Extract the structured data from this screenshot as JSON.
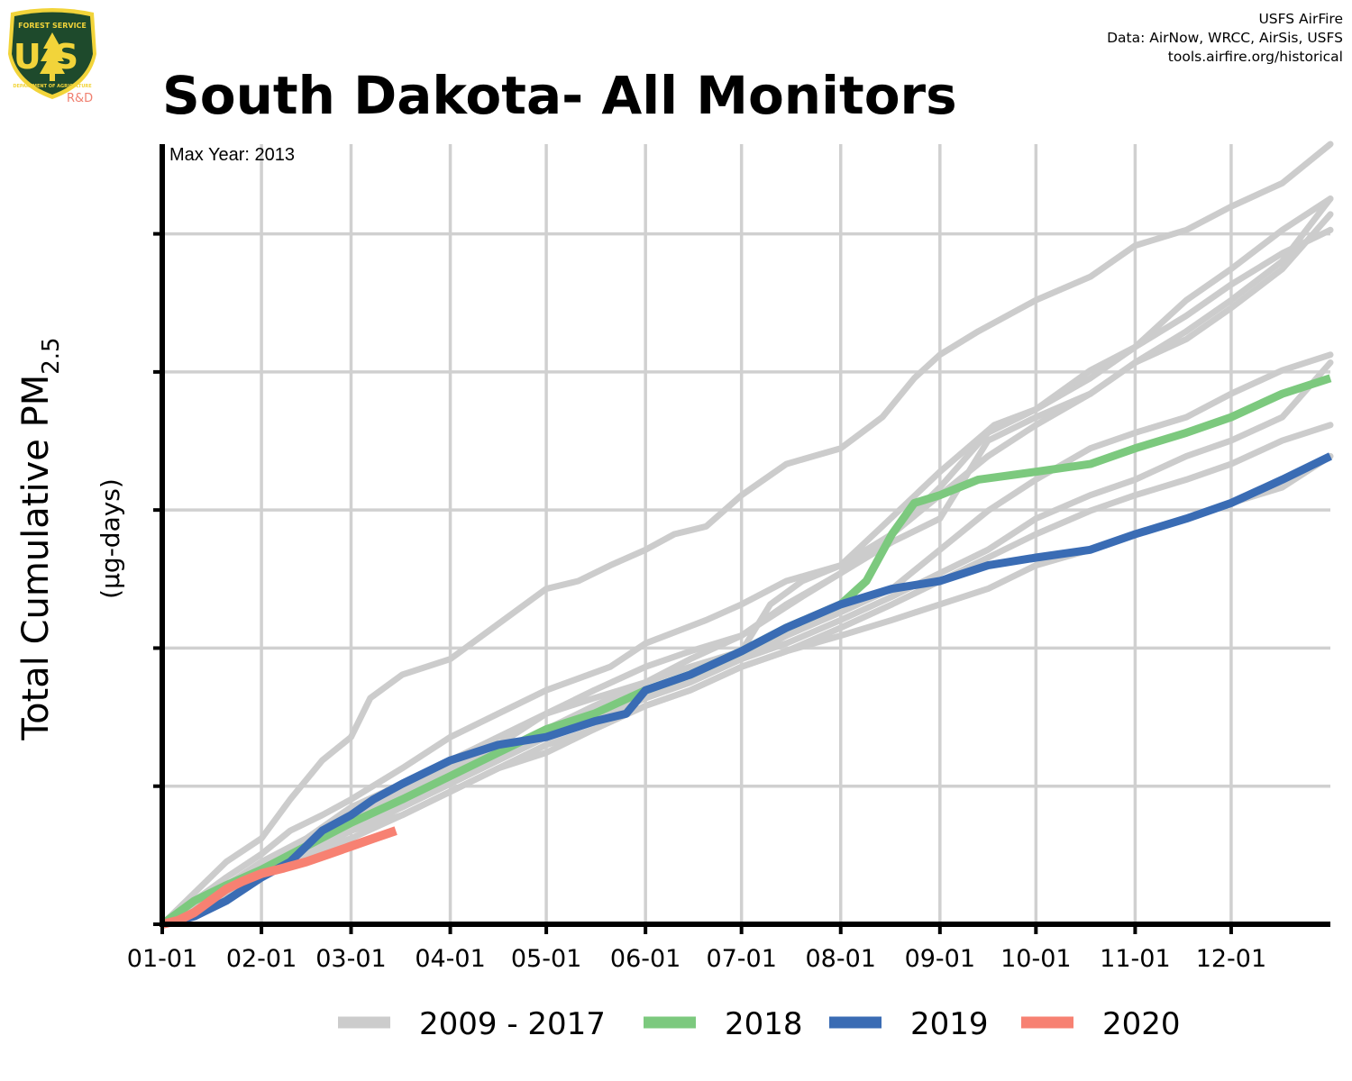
{
  "title": "South Dakota- All Monitors",
  "credits": [
    "USFS AirFire",
    "Data: AirNow, WRCC, AirSis, USFS",
    "tools.airfire.org/historical"
  ],
  "logo": {
    "agency": "FOREST SERVICE",
    "letters": "US",
    "dept": "DEPARTMENT OF AGRICULTURE",
    "badge": "R&D",
    "shield_color": "#1e4a2c",
    "gold_color": "#f2d43a",
    "badge_color": "#f08070"
  },
  "annotation": "Max Year: 2013",
  "chart_data": {
    "type": "line",
    "title": "South Dakota- All Monitors",
    "xlabel": "",
    "ylabel": "Total Cumulative PM",
    "ylabel_sub": "2.5",
    "ylabel_units": "(µg-days)",
    "x_tick_labels": [
      "01-01",
      "02-01",
      "03-01",
      "04-01",
      "05-01",
      "06-01",
      "07-01",
      "08-01",
      "09-01",
      "10-01",
      "11-01",
      "12-01"
    ],
    "x_tick_days": [
      0,
      31,
      59,
      90,
      120,
      151,
      181,
      212,
      243,
      273,
      304,
      334
    ],
    "xlim": [
      0,
      365
    ],
    "ylim": [
      0,
      100
    ],
    "y_ticks": [
      0,
      17.7,
      35.4,
      53.1,
      70.8,
      88.5
    ],
    "grid": true,
    "legend_position": "bottom",
    "legend": [
      {
        "label": "2009 - 2017",
        "color": "#cccccc"
      },
      {
        "label": "2018",
        "color": "#7cc97e"
      },
      {
        "label": "2019",
        "color": "#3a6cb4"
      },
      {
        "label": "2020",
        "color": "#f78172"
      }
    ],
    "background_series": [
      {
        "x": [
          0,
          10,
          20,
          31,
          40,
          50,
          59,
          65,
          75,
          90,
          100,
          110,
          120,
          130,
          140,
          151,
          160,
          170,
          181,
          195,
          212,
          225,
          235,
          243,
          255,
          273,
          290,
          304,
          320,
          334,
          350,
          365
        ],
        "y": [
          0,
          4,
          8,
          11,
          16,
          21,
          24,
          29,
          32,
          34,
          37,
          40,
          43,
          44,
          46,
          48,
          50,
          51,
          55,
          59,
          61,
          65,
          70,
          73,
          76,
          80,
          83,
          87,
          89,
          92,
          95,
          100
        ]
      },
      {
        "x": [
          0,
          10,
          20,
          31,
          40,
          50,
          59,
          75,
          90,
          105,
          120,
          140,
          151,
          170,
          181,
          195,
          212,
          225,
          243,
          260,
          273,
          290,
          304,
          320,
          334,
          350,
          365
        ],
        "y": [
          0,
          3,
          6,
          9,
          12,
          14,
          16,
          20,
          24,
          27,
          30,
          33,
          36,
          39,
          41,
          44,
          46,
          51,
          58,
          64,
          66,
          70,
          74,
          80,
          84,
          89,
          93
        ]
      },
      {
        "x": [
          0,
          10,
          20,
          31,
          45,
          59,
          75,
          90,
          105,
          120,
          135,
          151,
          165,
          181,
          195,
          212,
          228,
          243,
          258,
          273,
          290,
          304,
          320,
          334,
          350,
          365
        ],
        "y": [
          0,
          2,
          5,
          8,
          11,
          15,
          18,
          21,
          24,
          27,
          30,
          33,
          35,
          37,
          41,
          45,
          49,
          52,
          62,
          65,
          68,
          72,
          75,
          79,
          84,
          91
        ]
      },
      {
        "x": [
          0,
          10,
          20,
          31,
          45,
          59,
          75,
          90,
          105,
          120,
          135,
          151,
          165,
          181,
          190,
          200,
          212,
          228,
          243,
          258,
          273,
          290,
          304,
          320,
          334,
          350,
          365
        ],
        "y": [
          0,
          2,
          5,
          7,
          10,
          14,
          17,
          20,
          23,
          27,
          29,
          31,
          33,
          35,
          41,
          44,
          46,
          50,
          56,
          63,
          66,
          71,
          74,
          78,
          82,
          86,
          89
        ]
      },
      {
        "x": [
          0,
          10,
          20,
          31,
          45,
          59,
          75,
          90,
          105,
          120,
          135,
          151,
          165,
          181,
          200,
          212,
          228,
          243,
          258,
          273,
          290,
          304,
          320,
          334,
          350,
          365
        ],
        "y": [
          0,
          2,
          4,
          7,
          10,
          13,
          16,
          19,
          22,
          25,
          28,
          31,
          34,
          37,
          42,
          45,
          50,
          55,
          60,
          64,
          68,
          72,
          76,
          80,
          85,
          93
        ]
      },
      {
        "x": [
          0,
          10,
          20,
          31,
          45,
          59,
          75,
          90,
          105,
          120,
          135,
          151,
          165,
          181,
          195,
          212,
          228,
          243,
          258,
          273,
          290,
          304,
          320,
          334,
          350,
          365
        ],
        "y": [
          0,
          2,
          4,
          7,
          10,
          13,
          16,
          19,
          22,
          24,
          27,
          29,
          32,
          34,
          37,
          40,
          43,
          48,
          53,
          57,
          61,
          63,
          65,
          68,
          71,
          73
        ]
      },
      {
        "x": [
          0,
          10,
          20,
          31,
          45,
          59,
          75,
          90,
          105,
          120,
          135,
          151,
          165,
          181,
          195,
          212,
          228,
          243,
          258,
          273,
          290,
          304,
          320,
          334,
          350,
          365
        ],
        "y": [
          0,
          2,
          4,
          6,
          9,
          12,
          15,
          18,
          21,
          24,
          26,
          29,
          31,
          34,
          36,
          39,
          42,
          45,
          48,
          52,
          55,
          57,
          60,
          62,
          65,
          72
        ]
      },
      {
        "x": [
          0,
          10,
          20,
          31,
          45,
          59,
          75,
          90,
          105,
          120,
          135,
          151,
          165,
          181,
          195,
          212,
          228,
          243,
          258,
          273,
          290,
          304,
          320,
          334,
          350,
          365
        ],
        "y": [
          0,
          2,
          4,
          6,
          9,
          12,
          14,
          17,
          20,
          23,
          25,
          28,
          30,
          33,
          35,
          38,
          41,
          44,
          47,
          50,
          53,
          55,
          57,
          59,
          62,
          64
        ]
      },
      {
        "x": [
          0,
          10,
          20,
          31,
          45,
          59,
          75,
          90,
          105,
          120,
          135,
          151,
          165,
          181,
          195,
          212,
          228,
          243,
          258,
          273,
          290,
          304,
          320,
          334,
          350,
          365
        ],
        "y": [
          0,
          2,
          4,
          6,
          9,
          11,
          14,
          17,
          20,
          22,
          25,
          28,
          30,
          33,
          35,
          37,
          39,
          41,
          43,
          46,
          48,
          50,
          52,
          54,
          56,
          60
        ]
      }
    ],
    "series": [
      {
        "name": "2018",
        "color": "#7cc97e",
        "x": [
          0,
          10,
          20,
          31,
          45,
          59,
          75,
          90,
          105,
          120,
          135,
          151,
          165,
          181,
          195,
          212,
          220,
          228,
          235,
          243,
          255,
          273,
          290,
          304,
          320,
          334,
          350,
          365
        ],
        "y": [
          0,
          3,
          5,
          7,
          10,
          13,
          16,
          19,
          22,
          25,
          27,
          30,
          32,
          35,
          38,
          41,
          44,
          50,
          54,
          55,
          57,
          58,
          59,
          61,
          63,
          65,
          68,
          70
        ]
      },
      {
        "name": "2019",
        "color": "#3a6cb4",
        "x": [
          0,
          10,
          20,
          31,
          40,
          50,
          59,
          66,
          75,
          90,
          105,
          120,
          135,
          145,
          151,
          165,
          181,
          195,
          212,
          228,
          243,
          258,
          273,
          290,
          304,
          320,
          334,
          350,
          365
        ],
        "y": [
          0,
          1,
          3,
          6,
          8,
          12,
          14,
          16,
          18,
          21,
          23,
          24,
          26,
          27,
          30,
          32,
          35,
          38,
          41,
          43,
          44,
          46,
          47,
          48,
          50,
          52,
          54,
          57,
          60
        ]
      },
      {
        "name": "2020",
        "color": "#f78172",
        "x": [
          0,
          5,
          10,
          15,
          20,
          25,
          31,
          38,
          45,
          52,
          59,
          66,
          73
        ],
        "y": [
          0,
          0.5,
          1.5,
          3,
          4.5,
          5.5,
          6.5,
          7.2,
          8,
          9,
          10,
          11,
          12
        ]
      }
    ]
  }
}
